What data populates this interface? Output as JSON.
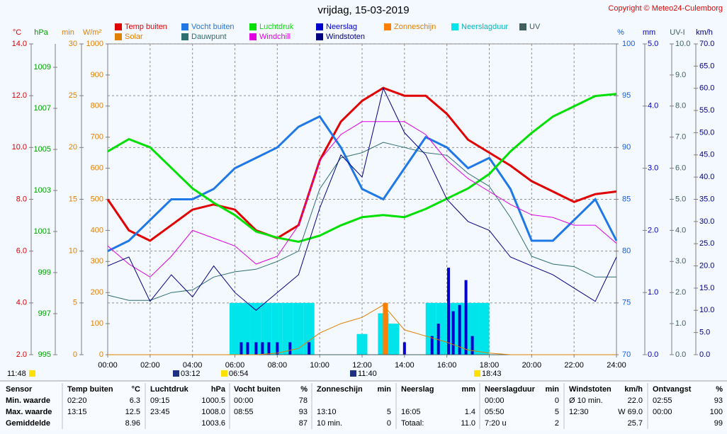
{
  "chart_data": {
    "type": "line",
    "title": "vrijdag, 15-03-2019",
    "copyright": "Copyright © Meteo24-Culemborg",
    "grid": true,
    "xlim": [
      0,
      24
    ],
    "xticks": [
      {
        "value": 0,
        "label": "00:00"
      },
      {
        "value": 2,
        "label": "02:00"
      },
      {
        "value": 4,
        "label": "04:00"
      },
      {
        "value": 6,
        "label": "06:00"
      },
      {
        "value": 8,
        "label": "08:00"
      },
      {
        "value": 10,
        "label": "10:00"
      },
      {
        "value": 12,
        "label": "12:00"
      },
      {
        "value": 14,
        "label": "14:00"
      },
      {
        "value": 16,
        "label": "16:00"
      },
      {
        "value": 18,
        "label": "18:00"
      },
      {
        "value": 20,
        "label": "20:00"
      },
      {
        "value": 22,
        "label": "22:00"
      },
      {
        "value": 24,
        "label": "24:00"
      }
    ],
    "axes": [
      {
        "label": "°C",
        "color": "#e00000",
        "ylim": [
          2,
          14
        ],
        "yticks": [
          {
            "value": 2,
            "label": "2.0"
          },
          {
            "value": 4,
            "label": "4.0"
          },
          {
            "value": 6,
            "label": "6.0"
          },
          {
            "value": 8,
            "label": "8.0"
          },
          {
            "value": 10,
            "label": "10.0"
          },
          {
            "value": 12,
            "label": "12.0"
          },
          {
            "value": 14,
            "label": "14.0"
          }
        ]
      },
      {
        "label": "hPa",
        "color": "#00a000",
        "ylim": [
          995,
          1010.14
        ],
        "yticks": [
          995,
          997,
          999,
          1001,
          1003,
          1005,
          1007,
          1009
        ]
      },
      {
        "label": "min",
        "color": "#e08000",
        "ylim": [
          0,
          30
        ],
        "yticks": [
          0,
          5,
          10,
          15,
          20,
          25,
          30
        ]
      },
      {
        "label": "W/m²",
        "color": "#e08000",
        "ylim": [
          0,
          1000
        ],
        "yticks": [
          0,
          100,
          200,
          300,
          400,
          500,
          600,
          700,
          800,
          900,
          1000
        ]
      },
      {
        "label": "%",
        "color": "#1060e0",
        "ylim": [
          70,
          100
        ],
        "yticks": [
          70,
          75,
          80,
          85,
          90,
          95,
          100
        ]
      },
      {
        "label": "mm",
        "color": "#0000c0",
        "ylim": [
          0,
          5
        ],
        "yticks": [
          {
            "value": 0,
            "label": "0.0"
          },
          {
            "value": 1,
            "label": "1.0"
          },
          {
            "value": 2,
            "label": "2.0"
          },
          {
            "value": 3,
            "label": "3.0"
          },
          {
            "value": 4,
            "label": "4.0"
          },
          {
            "value": 5,
            "label": "5.0"
          }
        ]
      },
      {
        "label": "UV-I",
        "color": "#406060",
        "ylim": [
          0,
          10
        ],
        "yticks": [
          {
            "value": 0,
            "label": "0.0"
          },
          {
            "value": 1,
            "label": "1.0"
          },
          {
            "value": 2,
            "label": "2.0"
          },
          {
            "value": 3,
            "label": "3.0"
          },
          {
            "value": 4,
            "label": "4.0"
          },
          {
            "value": 5,
            "label": "5.0"
          },
          {
            "value": 6,
            "label": "6.0"
          },
          {
            "value": 7,
            "label": "7.0"
          },
          {
            "value": 8,
            "label": "8.0"
          },
          {
            "value": 9,
            "label": "9.0"
          },
          {
            "value": 10,
            "label": "10.0"
          }
        ]
      },
      {
        "label": "km/h",
        "color": "#000080",
        "ylim": [
          0,
          70
        ],
        "yticks": [
          {
            "value": 0,
            "label": "0.0"
          },
          {
            "value": 5,
            "label": "5.0"
          },
          {
            "value": 10,
            "label": "10.0"
          },
          {
            "value": 15,
            "label": "15.0"
          },
          {
            "value": 20,
            "label": "20.0"
          },
          {
            "value": 25,
            "label": "25.0"
          },
          {
            "value": 30,
            "label": "30.0"
          },
          {
            "value": 35,
            "label": "35.0"
          },
          {
            "value": 40,
            "label": "40.0"
          },
          {
            "value": 45,
            "label": "45.0"
          },
          {
            "value": 50,
            "label": "50.0"
          },
          {
            "value": 55,
            "label": "55.0"
          },
          {
            "value": 60,
            "label": "60.0"
          },
          {
            "value": 65,
            "label": "65.0"
          },
          {
            "value": 70,
            "label": "70.0"
          }
        ]
      }
    ],
    "x": [
      0,
      1,
      2,
      3,
      4,
      5,
      6,
      7,
      8,
      9,
      10,
      11,
      12,
      13,
      14,
      15,
      16,
      17,
      18,
      19,
      20,
      21,
      22,
      23,
      24
    ],
    "series": [
      {
        "name": "Temp buiten",
        "color": "#e00000",
        "axis": 0,
        "kind": "line",
        "values": [
          8.0,
          6.8,
          6.4,
          7.0,
          7.6,
          7.8,
          7.6,
          6.8,
          6.5,
          7.0,
          9.5,
          11.0,
          11.8,
          12.3,
          12.0,
          12.0,
          11.3,
          10.3,
          9.8,
          9.3,
          8.7,
          8.3,
          7.9,
          8.2,
          8.3
        ]
      },
      {
        "name": "Vocht buiten",
        "color": "#1e78e6",
        "axis": 4,
        "kind": "line",
        "values": [
          80,
          81,
          83,
          85,
          85,
          86,
          88,
          89,
          90,
          92,
          93,
          90,
          86,
          85,
          88,
          91,
          90,
          88,
          89,
          86,
          81,
          81,
          83,
          85,
          81
        ]
      },
      {
        "name": "Luchtdruk",
        "color": "#00e000",
        "axis": 1,
        "kind": "line",
        "values": [
          1004.9,
          1005.5,
          1005.1,
          1004.1,
          1003.1,
          1002.4,
          1001.8,
          1001,
          1000.7,
          1000.5,
          1000.8,
          1001.3,
          1001.7,
          1001.8,
          1001.7,
          1002.1,
          1002.6,
          1003.1,
          1003.8,
          1004.9,
          1005.8,
          1006.6,
          1007.1,
          1007.6,
          1007.7
        ]
      },
      {
        "name": "Neerslag",
        "color": "#0000cc",
        "axis": 5,
        "kind": "bar",
        "x": [
          6.3,
          6.6,
          7,
          7.3,
          7.6,
          8,
          8.6,
          9.5,
          14,
          15.3,
          15.6,
          16.08,
          16.3,
          16.6,
          16.9,
          17.2
        ],
        "values": [
          0.2,
          0.2,
          0.2,
          0.2,
          0.2,
          0.2,
          0.2,
          0.2,
          0.2,
          0.3,
          0.5,
          1.4,
          0.7,
          0.8,
          1.2,
          0.3
        ]
      },
      {
        "name": "Zonneschijn",
        "color": "#ff8000",
        "axis": 2,
        "kind": "bar",
        "x": [
          13.1
        ],
        "values": [
          5
        ]
      },
      {
        "name": "Neerslagduur",
        "color": "#00e4ec",
        "axis": 2,
        "kind": "span",
        "x": [
          5.75,
          6.25,
          6.75,
          7.25,
          7.75,
          8.25,
          8.75,
          9.25,
          11.75,
          12.75,
          13.25,
          15,
          15.5,
          16,
          16.5,
          17,
          17.5
        ],
        "values": [
          5,
          5,
          5,
          5,
          5,
          5,
          5,
          5,
          2,
          4,
          3,
          5,
          5,
          5,
          5,
          5,
          5
        ]
      },
      {
        "name": "UV",
        "color": "#406060",
        "axis": 6,
        "kind": "line",
        "values": [
          0,
          0,
          0,
          0,
          0,
          0,
          0,
          0,
          0,
          0,
          0,
          0,
          0,
          0,
          0,
          0,
          0,
          0,
          0,
          0,
          0,
          0,
          0,
          0,
          0
        ]
      },
      {
        "name": "Solar",
        "color": "#e08000",
        "axis": 3,
        "kind": "line",
        "values": [
          0,
          0,
          0,
          0,
          0,
          0,
          0,
          0,
          5,
          20,
          70,
          100,
          120,
          160,
          80,
          60,
          40,
          15,
          5,
          0,
          0,
          0,
          0,
          0,
          0
        ]
      },
      {
        "name": "Dauwpunt",
        "color": "#2f6f6f",
        "axis": 0,
        "kind": "line",
        "values": [
          4.3,
          4.1,
          4.1,
          4.4,
          4.5,
          5.0,
          5.2,
          5.3,
          5.6,
          6.0,
          8.4,
          9.6,
          9.8,
          10.2,
          10.0,
          9.8,
          9.7,
          9.0,
          8.5,
          7.3,
          5.8,
          5.5,
          5.4,
          5.0,
          5.0
        ]
      },
      {
        "name": "Windchill",
        "color": "#e000e0",
        "axis": 0,
        "kind": "line",
        "values": [
          6.2,
          5.5,
          5.0,
          5.8,
          6.8,
          6.5,
          6.2,
          5.5,
          5.8,
          7.0,
          9.5,
          10.5,
          11,
          11,
          11,
          10.5,
          9.5,
          8.8,
          8.3,
          7.8,
          7.4,
          7.3,
          7.0,
          7.0,
          6.3
        ]
      },
      {
        "name": "Windstoten",
        "color": "#000080",
        "axis": 7,
        "kind": "line",
        "values": [
          20,
          22,
          12,
          18,
          13,
          20,
          14,
          10,
          14,
          18,
          33,
          45,
          40,
          60,
          50,
          45,
          35,
          30,
          28,
          22,
          20,
          18,
          15,
          12,
          22
        ]
      }
    ],
    "events": [
      "11:48",
      "03:12",
      "06:54",
      "11:40",
      "18:43"
    ]
  },
  "table": {
    "header": [
      "Sensor",
      "Temp buiten",
      "°C",
      "Luchtdruk",
      "hPa",
      "Vocht buiten",
      "%",
      "Zonneschijn",
      "min",
      "Neerslag",
      "mm",
      "Neerslagduur",
      "min",
      "Windstoten",
      "km/h",
      "Ontvangst",
      "%"
    ],
    "rows": [
      [
        "Min. waarde",
        "02:20",
        "6.3",
        "09:15",
        "1000.5",
        "00:00",
        "78",
        null,
        null,
        null,
        null,
        "00:00",
        "0",
        "Ø 10 min.",
        "22.0",
        "02:55",
        "93"
      ],
      [
        "Max. waarde",
        "13:15",
        "12.5",
        "23:45",
        "1008.0",
        "08:55",
        "93",
        "13:10",
        "5",
        "16:05",
        "1.4",
        "05:50",
        "5",
        "12:30",
        "W 69.0",
        "00:00",
        "100"
      ],
      [
        "Gemiddelde",
        null,
        "8.96",
        null,
        "1003.6",
        null,
        "87",
        "10 min.",
        "0",
        "Totaal:",
        "11.0",
        "7:20 u",
        "2",
        null,
        "25.7",
        null,
        "99"
      ]
    ]
  }
}
